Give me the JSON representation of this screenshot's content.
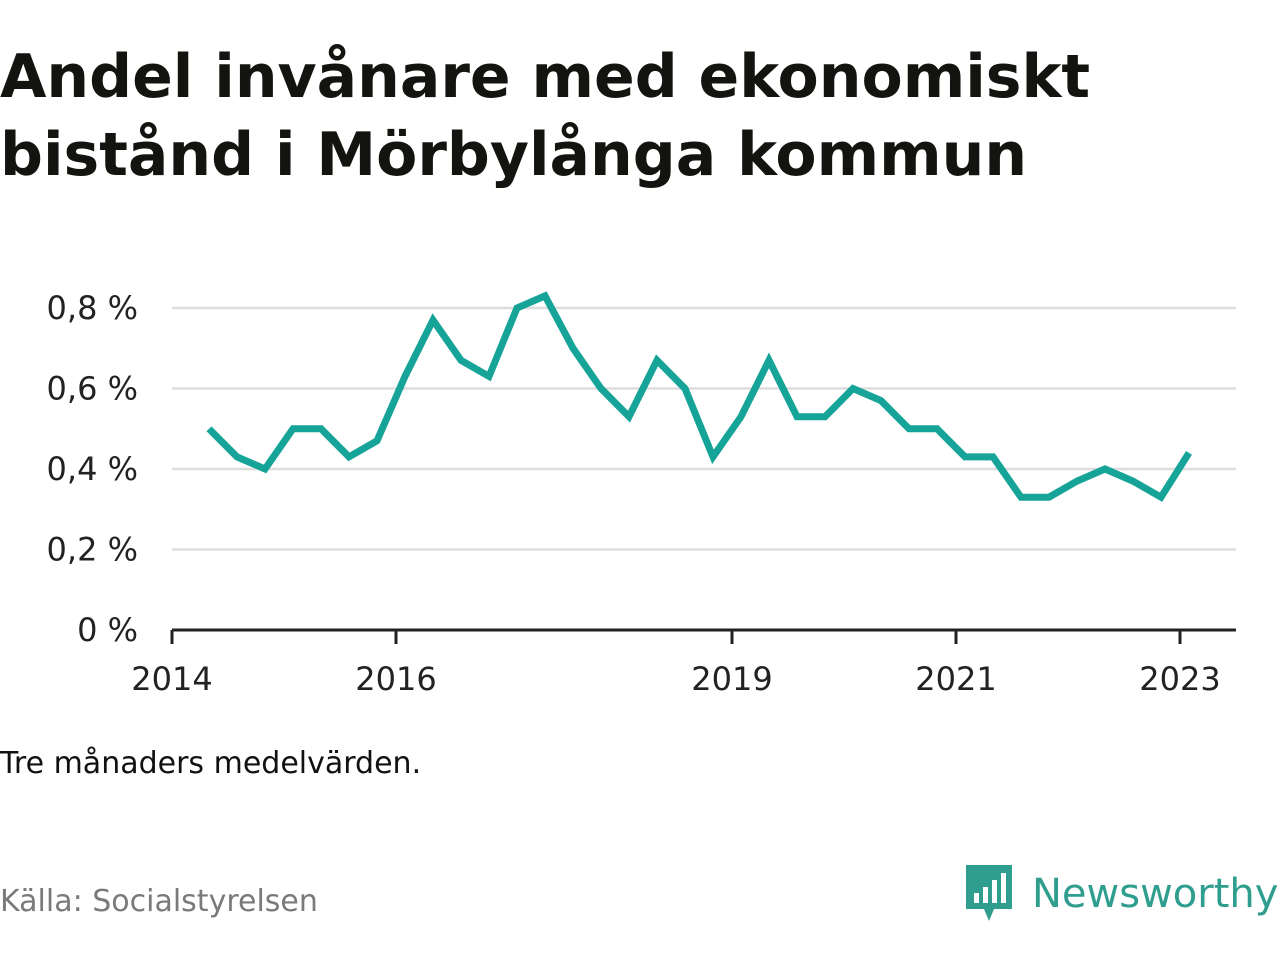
{
  "title": "Andel invånare med ekonomiskt bistånd i Mörbylånga kommun",
  "note": "Tre månaders medelvärden.",
  "source": "Källa: Socialstyrelsen",
  "brand": {
    "name": "Newsworthy",
    "icon": "chart-bubble-icon",
    "color": "#2f9e8e"
  },
  "colors": {
    "line": "#16a398",
    "grid": "#dddddd",
    "axis": "#222222"
  },
  "chart_data": {
    "type": "line",
    "title": "Andel invånare med ekonomiskt bistånd i Mörbylånga kommun",
    "xlabel": "",
    "ylabel": "",
    "grid": true,
    "ylim": [
      0,
      0.8
    ],
    "xlim": [
      2014.0,
      2023.5
    ],
    "y_ticks": [
      0,
      0.2,
      0.4,
      0.6,
      0.8
    ],
    "y_tick_labels": [
      "0 %",
      "0,2 %",
      "0,4 %",
      "0,6 %",
      "0,8 %"
    ],
    "x_ticks": [
      2014,
      2016,
      2019,
      2021,
      2023
    ],
    "x_tick_labels": [
      "2014",
      "2016",
      "2019",
      "2021",
      "2023"
    ],
    "series": [
      {
        "x": [
          2014.33,
          2014.58,
          2014.83,
          2015.08,
          2015.33,
          2015.58,
          2015.83,
          2016.08,
          2016.33,
          2016.58,
          2016.83,
          2017.08,
          2017.33,
          2017.58,
          2017.83,
          2018.08,
          2018.33,
          2018.58,
          2018.83,
          2019.08,
          2019.33,
          2019.58,
          2019.83,
          2020.08,
          2020.33,
          2020.58,
          2020.83,
          2021.08,
          2021.33,
          2021.58,
          2021.83,
          2022.08,
          2022.33,
          2022.58,
          2022.83,
          2023.08
        ],
        "values": [
          0.5,
          0.43,
          0.4,
          0.5,
          0.5,
          0.43,
          0.47,
          0.63,
          0.77,
          0.67,
          0.63,
          0.8,
          0.83,
          0.7,
          0.6,
          0.53,
          0.67,
          0.6,
          0.43,
          0.53,
          0.67,
          0.53,
          0.53,
          0.6,
          0.57,
          0.5,
          0.5,
          0.43,
          0.43,
          0.33,
          0.33,
          0.37,
          0.4,
          0.37,
          0.33,
          0.44
        ]
      }
    ]
  }
}
